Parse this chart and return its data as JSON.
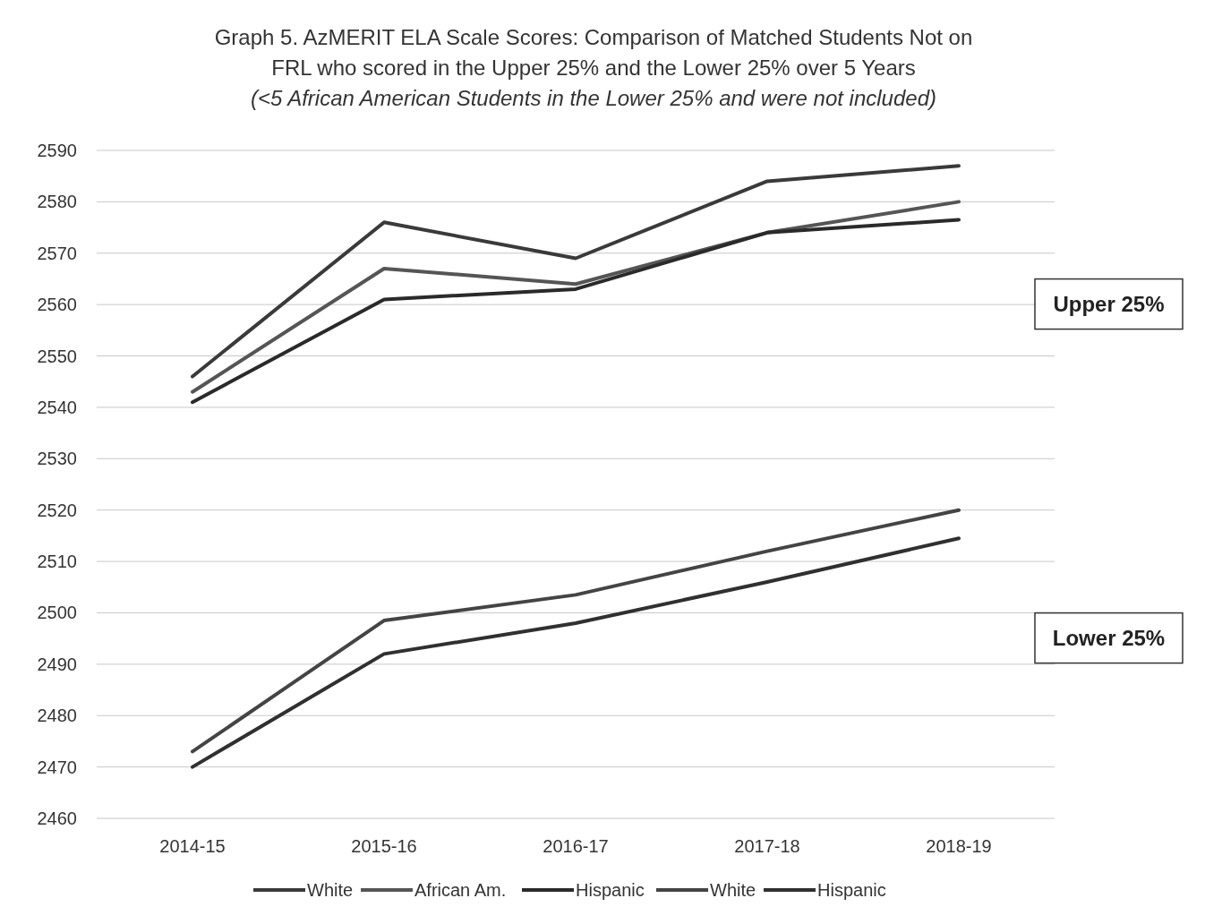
{
  "chart_data": {
    "type": "line",
    "title": "Graph 5.  AzMERIT ELA Scale Scores:  Comparison of Matched Students Not on FRL who scored in the Upper 25% and the Lower 25% over 5 Years",
    "subtitle": "(<5 African American Students in the Lower 25% and were not included)",
    "categories": [
      "2014-15",
      "2015-16",
      "2016-17",
      "2017-18",
      "2018-19"
    ],
    "series": [
      {
        "name": "White",
        "color": "#3a3a3a",
        "values": [
          2546,
          2576,
          2569,
          2584,
          2587
        ]
      },
      {
        "name": "African Am.",
        "color": "#555555",
        "values": [
          2543,
          2567,
          2564,
          2574,
          2580
        ]
      },
      {
        "name": "Hispanic",
        "color": "#2a2a2a",
        "values": [
          2541,
          2561,
          2563,
          2574,
          2576.5
        ]
      },
      {
        "name": "White",
        "color": "#444444",
        "values": [
          2473,
          2498.5,
          2503.5,
          2512,
          2520
        ]
      },
      {
        "name": "Hispanic",
        "color": "#303030",
        "values": [
          2470,
          2492,
          2498,
          2506,
          2514.5
        ]
      }
    ],
    "ylim": [
      2460,
      2590
    ],
    "yticks": [
      2460,
      2470,
      2480,
      2490,
      2500,
      2510,
      2520,
      2530,
      2540,
      2550,
      2560,
      2570,
      2580,
      2590
    ],
    "grid": "y",
    "legend": "bottom",
    "marker": "none",
    "line_style": "solid",
    "annotations": [
      "Upper 25%",
      "Lower 25%"
    ]
  }
}
